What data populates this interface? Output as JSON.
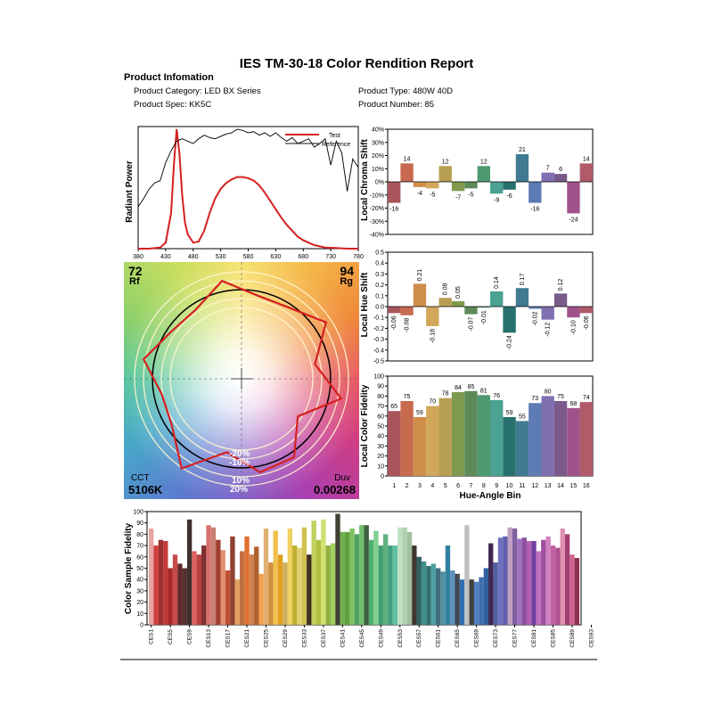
{
  "report": {
    "title": "IES TM-30-18 Color Rendition Report",
    "info_heading": "Product Infomation",
    "category_line": "Product Category: LED BX Series",
    "spec_line": "Product Spec: KK5C",
    "type_line": "Product Type: 480W  40D",
    "number_line": "Product Number: 85"
  },
  "metrics": {
    "rf_value": "72",
    "rf_label": "Rf",
    "rg_value": "94",
    "rg_label": "Rg",
    "cct_label": "CCT",
    "cct_value": "5106K",
    "duv_label": "Duv",
    "duv_value": "0.00268",
    "ring_labels": {
      "r20_top": "-20%",
      "r10_top": "-10%",
      "r10_bot": "10%",
      "r20_bot": "20%"
    }
  },
  "chart_data": [
    {
      "id": "spd",
      "type": "line",
      "ylabel": "Radiant Power",
      "xlim": [
        380,
        780
      ],
      "x_ticks": [
        380,
        430,
        480,
        530,
        580,
        630,
        680,
        730,
        780
      ],
      "legend": [
        "Test",
        "Reference"
      ],
      "series": [
        {
          "name": "Test",
          "color": "#d42020",
          "x": [
            380,
            400,
            420,
            430,
            440,
            445,
            450,
            455,
            460,
            465,
            470,
            480,
            490,
            500,
            510,
            520,
            530,
            540,
            550,
            560,
            570,
            580,
            590,
            600,
            610,
            620,
            630,
            640,
            650,
            660,
            670,
            680,
            690,
            700,
            720,
            740,
            760,
            780
          ],
          "y": [
            0,
            0,
            0.01,
            0.05,
            0.3,
            0.7,
            1.0,
            0.8,
            0.45,
            0.22,
            0.12,
            0.05,
            0.06,
            0.15,
            0.3,
            0.42,
            0.5,
            0.55,
            0.58,
            0.6,
            0.6,
            0.59,
            0.57,
            0.53,
            0.47,
            0.4,
            0.33,
            0.26,
            0.2,
            0.15,
            0.1,
            0.07,
            0.05,
            0.03,
            0.01,
            0.005,
            0,
            0
          ]
        },
        {
          "name": "Reference",
          "color": "#111111",
          "x": [
            380,
            390,
            400,
            410,
            420,
            430,
            440,
            450,
            460,
            470,
            480,
            490,
            500,
            510,
            520,
            530,
            540,
            550,
            560,
            570,
            580,
            590,
            600,
            610,
            620,
            630,
            640,
            650,
            660,
            670,
            680,
            690,
            700,
            710,
            720,
            730,
            740,
            750,
            760,
            770,
            780
          ],
          "y": [
            0.35,
            0.42,
            0.5,
            0.55,
            0.57,
            0.72,
            0.82,
            0.9,
            0.92,
            0.9,
            0.88,
            0.92,
            0.95,
            0.93,
            0.92,
            0.94,
            0.96,
            0.97,
            1.0,
            0.99,
            0.97,
            0.98,
            0.95,
            0.97,
            0.94,
            0.97,
            0.93,
            0.9,
            0.93,
            0.88,
            0.9,
            0.92,
            0.85,
            0.88,
            0.92,
            0.7,
            0.9,
            0.8,
            0.48,
            0.75,
            0.68
          ]
        }
      ]
    },
    {
      "id": "chroma",
      "type": "bar",
      "ylabel": "Local Chroma Shift",
      "ylim": [
        -40,
        40
      ],
      "y_ticks": [
        "-40%",
        "-30%",
        "-20%",
        "-10%",
        "0%",
        "10%",
        "20%",
        "30%",
        "40%"
      ],
      "categories": [
        "1",
        "2",
        "3",
        "4",
        "5",
        "6",
        "7",
        "8",
        "9",
        "10",
        "11",
        "12",
        "13",
        "14",
        "15",
        "16"
      ],
      "values": [
        -16,
        14,
        -4,
        -5,
        12,
        -7,
        -5,
        12,
        -9,
        -6,
        21,
        -16,
        7,
        6,
        -24,
        14
      ]
    },
    {
      "id": "hue",
      "type": "bar",
      "ylabel": "Local Hue Shift",
      "ylim": [
        -0.5,
        0.5
      ],
      "y_ticks": [
        "-0.5",
        "-0.4",
        "-0.3",
        "-0.2",
        "-0.1",
        "0.0",
        "0.1",
        "0.2",
        "0.3",
        "0.4",
        "0.5"
      ],
      "categories": [
        "1",
        "2",
        "3",
        "4",
        "5",
        "6",
        "7",
        "8",
        "9",
        "10",
        "11",
        "12",
        "13",
        "14",
        "15",
        "16"
      ],
      "values": [
        -0.06,
        -0.08,
        0.21,
        -0.18,
        0.08,
        0.05,
        -0.07,
        -0.01,
        0.14,
        -0.24,
        0.17,
        -0.02,
        -0.12,
        0.12,
        -0.1,
        -0.06
      ],
      "labels": [
        "-0.06",
        "-0.08",
        "0.21",
        "-0.18",
        "0.08",
        "0.05",
        "-0.07",
        "-0.01",
        "0.14",
        "-0.24",
        "0.17",
        "-0.02",
        "-0.12",
        "0.12",
        "-0.10",
        "-0.06"
      ]
    },
    {
      "id": "fidelity",
      "type": "bar",
      "ylabel": "Local Color Fidelity",
      "xlabel": "Hue-Angle Bin",
      "ylim": [
        0,
        100
      ],
      "y_ticks": [
        "0",
        "10",
        "20",
        "30",
        "40",
        "50",
        "60",
        "70",
        "80",
        "90",
        "100"
      ],
      "categories": [
        "1",
        "2",
        "3",
        "4",
        "5",
        "6",
        "7",
        "8",
        "9",
        "10",
        "11",
        "12",
        "13",
        "14",
        "15",
        "16"
      ],
      "values": [
        65,
        75,
        59,
        70,
        78,
        84,
        85,
        81,
        76,
        59,
        55,
        73,
        80,
        75,
        68,
        74
      ]
    },
    {
      "id": "ces",
      "type": "bar",
      "ylabel": "Color Sample Fidelity",
      "ylim": [
        0,
        100
      ],
      "y_ticks": [
        "0",
        "10",
        "20",
        "30",
        "40",
        "50",
        "60",
        "70",
        "80",
        "90",
        "100"
      ],
      "x_tick_labels": [
        "CES1",
        "CES5",
        "CES9",
        "CES13",
        "CES17",
        "CES21",
        "CES25",
        "CES29",
        "CES33",
        "CES37",
        "CES41",
        "CES45",
        "CES49",
        "CES53",
        "CES57",
        "CES61",
        "CES65",
        "CES69",
        "CES73",
        "CES77",
        "CES81",
        "CES85",
        "CES89",
        "CES93",
        "CES97"
      ],
      "values": [
        85,
        70,
        75,
        74,
        50,
        62,
        54,
        50,
        93,
        65,
        62,
        70,
        88,
        86,
        75,
        66,
        48,
        78,
        40,
        65,
        78,
        62,
        69,
        45,
        85,
        55,
        83,
        62,
        55,
        85,
        70,
        68,
        86,
        62,
        92,
        75,
        93,
        70,
        72,
        98,
        82,
        82,
        85,
        80,
        88,
        88,
        75,
        83,
        70,
        80,
        70,
        70,
        86,
        86,
        82,
        70,
        60,
        56,
        52,
        54,
        50,
        47,
        70,
        48,
        45,
        40,
        88,
        40,
        38,
        42,
        50,
        72,
        55,
        77,
        78,
        86,
        85,
        76,
        77,
        74,
        74,
        65,
        75,
        78,
        70,
        68,
        85,
        80,
        62,
        59
      ],
      "colors": [
        "#e8a3a3",
        "#d04040",
        "#9a3030",
        "#c23a3a",
        "#a82828",
        "#c84a4a",
        "#602828",
        "#5a3030",
        "#403030",
        "#e06060",
        "#b84040",
        "#803030",
        "#d87070",
        "#c88070",
        "#a04030",
        "#e09070",
        "#c05030",
        "#904030",
        "#e0a060",
        "#c07040",
        "#e07030",
        "#d08050",
        "#b06030",
        "#f0a050",
        "#e0b070",
        "#d09040",
        "#f0c050",
        "#e0a020",
        "#d0b060",
        "#f0d060",
        "#c0b030",
        "#e0d070",
        "#d0c050",
        "#403020",
        "#c0d060",
        "#b0c040",
        "#d0e070",
        "#90b040",
        "#a0d060",
        "#404030",
        "#70b050",
        "#60a040",
        "#80c060",
        "#50a060",
        "#70c070",
        "#406040",
        "#50b070",
        "#80d090",
        "#40a070",
        "#60b080",
        "#40a080",
        "#60c0a0",
        "#c0e0c0",
        "#b0d0b0",
        "#a0c0a0",
        "#403830",
        "#306060",
        "#40908a",
        "#307070",
        "#50a0a0",
        "#407080",
        "#5090a0",
        "#3080a0",
        "#6090c0",
        "#404850",
        "#3070b0",
        "#c0c0c0",
        "#404040",
        "#5080c0",
        "#4070b0",
        "#3060a0",
        "#402850",
        "#5060a0",
        "#7070c0",
        "#6060b0",
        "#c0a0c0",
        "#8060a0",
        "#a070c0",
        "#9050a0",
        "#b060b0",
        "#7040a0",
        "#c070c0",
        "#a050a0",
        "#d080c0",
        "#c060a0",
        "#b05090",
        "#e090b0",
        "#a04070",
        "#d06090",
        "#903050"
      ]
    }
  ]
}
